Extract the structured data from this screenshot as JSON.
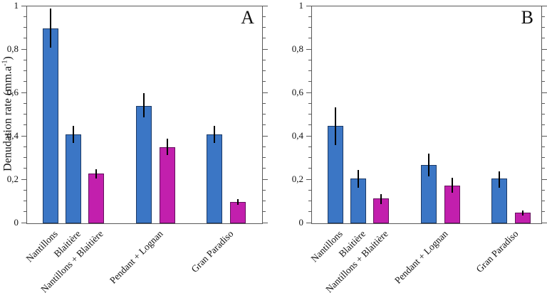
{
  "figure": {
    "ylabel_pre": "Denudation rate (mm.a",
    "ylabel_sup": "-1",
    "ylabel_post": ")"
  },
  "colors": {
    "bar_blue": "#3B76C5",
    "bar_blue_border": "#1C3A66",
    "bar_magenta": "#C21FAD",
    "bar_magenta_border": "#63115C",
    "error_bar": "#000000",
    "frame": "#595959",
    "text": "#111111",
    "background": "#ffffff"
  },
  "chart_data": [
    {
      "type": "bar",
      "panel_label": "A",
      "title": "",
      "xlabel": "",
      "ylabel": "Denudation rate (mm.a-1)",
      "ylim": [
        0,
        1
      ],
      "yticks": [
        0,
        0.2,
        0.4,
        0.6,
        0.8,
        1
      ],
      "ytick_labels": [
        "0",
        "0,2",
        "0,4",
        "0,6",
        "0,8",
        "1"
      ],
      "minor_tick_step": 0.05,
      "decimal_separator": ",",
      "grid": false,
      "legend": "none",
      "categories": [
        "Nantillons",
        "Blaitière",
        "Nantillons + Blaitière",
        "Pendant + Lognan",
        "Gran Paradiso"
      ],
      "bars": [
        {
          "label": "Nantillons",
          "color": "blue",
          "value": 0.9,
          "err_lo": 0.81,
          "err_hi": 0.99
        },
        {
          "label": "Blaitière",
          "color": "blue",
          "value": 0.41,
          "err_lo": 0.37,
          "err_hi": 0.45
        },
        {
          "label": "Nantillons + Blaitière",
          "color": "magenta",
          "value": 0.23,
          "err_lo": 0.205,
          "err_hi": 0.25
        },
        {
          "label": "Pendant + Lognan",
          "color": "blue",
          "value": 0.54,
          "err_lo": 0.49,
          "err_hi": 0.6
        },
        {
          "label": "Pendant + Lognan",
          "color": "magenta",
          "value": 0.35,
          "err_lo": 0.315,
          "err_hi": 0.39
        },
        {
          "label": "Gran Paradiso",
          "color": "blue",
          "value": 0.41,
          "err_lo": 0.37,
          "err_hi": 0.45
        },
        {
          "label": "Gran Paradiso",
          "color": "magenta",
          "value": 0.1,
          "err_lo": 0.085,
          "err_hi": 0.11
        }
      ]
    },
    {
      "type": "bar",
      "panel_label": "B",
      "title": "",
      "xlabel": "",
      "ylabel": "",
      "ylim": [
        0,
        1
      ],
      "yticks": [
        0,
        0.2,
        0.4,
        0.6,
        0.8,
        1
      ],
      "ytick_labels": [
        "0",
        "0,2",
        "0,4",
        "0,6",
        "0,8",
        "1"
      ],
      "minor_tick_step": 0.05,
      "decimal_separator": ",",
      "grid": false,
      "legend": "none",
      "categories": [
        "Nantillons",
        "Blaitière",
        "Nantillons + Blaitière",
        "Pendant + Lognan",
        "Gran Paradiso"
      ],
      "bars": [
        {
          "label": "Nantillons",
          "color": "blue",
          "value": 0.45,
          "err_lo": 0.36,
          "err_hi": 0.535
        },
        {
          "label": "Blaitière",
          "color": "blue",
          "value": 0.205,
          "err_lo": 0.165,
          "err_hi": 0.245
        },
        {
          "label": "Nantillons + Blaitière",
          "color": "magenta",
          "value": 0.115,
          "err_lo": 0.09,
          "err_hi": 0.135
        },
        {
          "label": "Pendant + Lognan",
          "color": "blue",
          "value": 0.27,
          "err_lo": 0.215,
          "err_hi": 0.32
        },
        {
          "label": "Pendant + Lognan",
          "color": "magenta",
          "value": 0.175,
          "err_lo": 0.14,
          "err_hi": 0.21
        },
        {
          "label": "Gran Paradiso",
          "color": "blue",
          "value": 0.205,
          "err_lo": 0.165,
          "err_hi": 0.24
        },
        {
          "label": "Gran Paradiso",
          "color": "magenta",
          "value": 0.05,
          "err_lo": 0.037,
          "err_hi": 0.06
        }
      ]
    }
  ]
}
